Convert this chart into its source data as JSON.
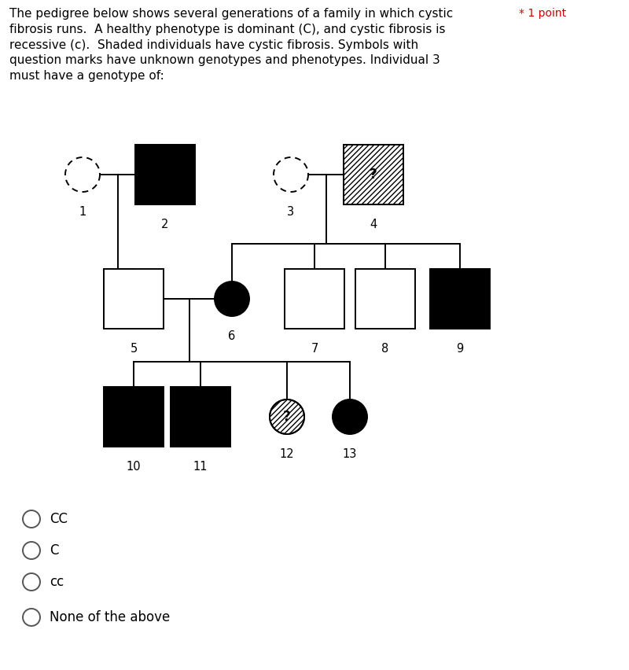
{
  "title_text": "The pedigree below shows several generations of a family in which cystic   * 1 point\nfibrosis runs.  A healthy phenotype is dominant (C), and cystic fibrosis is\nrecessive (c).  Shaded individuals have cystic fibrosis. Symbols with\nquestion marks have unknown genotypes and phenotypes. Individual 3\nmust have a genotype of:",
  "background_color": "#ffffff",
  "choices": [
    "CC",
    "C",
    "cc",
    "None of the above"
  ],
  "point_text": "* 1 point",
  "fig_width": 8.0,
  "fig_height": 8.52
}
